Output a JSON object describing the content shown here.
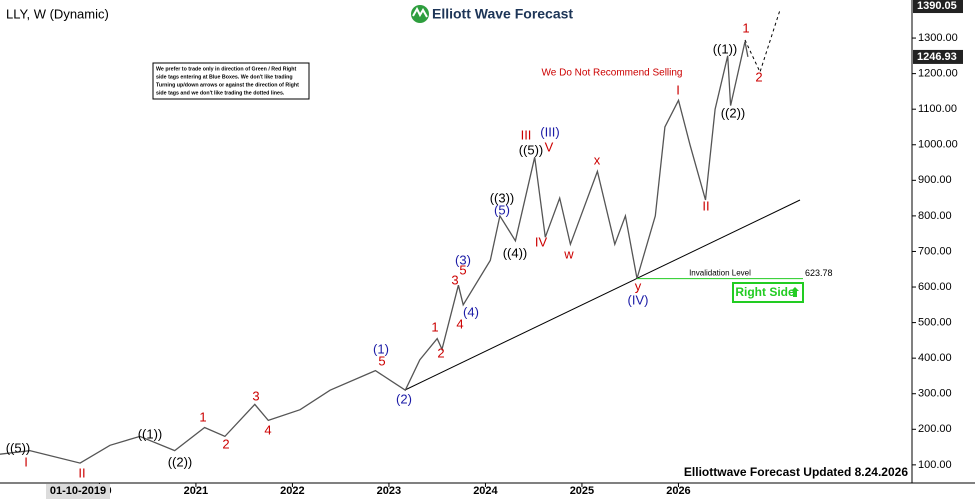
{
  "chart_data": {
    "type": "line",
    "title": "LLY, W (Dynamic)",
    "logo": "Elliott Wave Forecast",
    "note": [
      "We prefer to trade only in direction of Green / Red Right",
      "side tags entering at Blue Boxes. We don't like trading",
      "Turning up/down arrows or against the direction of Right",
      "side tags and we don't like trading the dotted lines."
    ],
    "warning": "We Do Not Recommend Selling",
    "invalidation_label": "Invalidation Level",
    "invalidation_value": 623.78,
    "side_tag": "Right Side",
    "footer": "Elliottwave Forecast Updated 8.24.2026",
    "cursor_label": "01-10-2019",
    "price_markers": [
      1390.05,
      1246.93
    ],
    "series": [
      {
        "name": "LLY",
        "color": "#555555",
        "x": [
          2018.97,
          2019.28,
          2019.8,
          2020.11,
          2020.42,
          2020.78,
          2021.09,
          2021.3,
          2021.61,
          2021.75,
          2022.08,
          2022.39,
          2022.86,
          2023.17,
          2023.32,
          2023.5,
          2023.55,
          2023.72,
          2023.77,
          2024.05,
          2024.15,
          2024.31,
          2024.51,
          2024.62,
          2024.77,
          2024.88,
          2025.16,
          2025.34,
          2025.45,
          2025.57,
          2025.76,
          2025.86,
          2026.0,
          2026.12,
          2026.28,
          2026.38,
          2026.51,
          2026.54,
          2026.69,
          2026.72
        ],
        "values": [
          130,
          140,
          105,
          155,
          180,
          140,
          205,
          180,
          270,
          225,
          255,
          310,
          365,
          310,
          395,
          455,
          425,
          605,
          550,
          675,
          800,
          730,
          965,
          740,
          850,
          720,
          925,
          720,
          800,
          624,
          800,
          1050,
          1125,
          1000,
          845,
          1100,
          1250,
          1110,
          1290,
          1247
        ]
      }
    ],
    "xlim": [
      2018.97,
      2028.42
    ],
    "xticks": [
      2020,
      2021,
      2022,
      2023,
      2024,
      2025,
      2026
    ],
    "ylim": [
      49,
      1407
    ],
    "yticks": [
      {
        "value": 100,
        "label": "100.00"
      },
      {
        "value": 200,
        "label": "200.00"
      },
      {
        "value": 300,
        "label": "300.00"
      },
      {
        "value": 400,
        "label": "400.00"
      },
      {
        "value": 500,
        "label": "500.00"
      },
      {
        "value": 600,
        "label": "600.00"
      },
      {
        "value": 700,
        "label": "700.00"
      },
      {
        "value": 800,
        "label": "800.00"
      },
      {
        "value": 900,
        "label": "900.00"
      },
      {
        "value": 1000,
        "label": "1000.00"
      },
      {
        "value": 1100,
        "label": "1100.00"
      },
      {
        "value": 1200,
        "label": "1200.00"
      },
      {
        "value": 1300,
        "label": "1300.00"
      }
    ],
    "wave_labels": [
      {
        "text": "((5))",
        "color": "#000000"
      },
      {
        "text": "I",
        "color": "#cc0000"
      },
      {
        "text": "II",
        "color": "#cc0000"
      },
      {
        "text": "((1))",
        "color": "#000000"
      },
      {
        "text": "((2))",
        "color": "#000000"
      },
      {
        "text": "1",
        "color": "#cc0000"
      },
      {
        "text": "2",
        "color": "#cc0000"
      },
      {
        "text": "3",
        "color": "#cc0000"
      },
      {
        "text": "4",
        "color": "#cc0000"
      },
      {
        "text": "(1)",
        "color": "#1a1aa6"
      },
      {
        "text": "5",
        "color": "#cc0000"
      },
      {
        "text": "(2)",
        "color": "#1a1aa6"
      },
      {
        "text": "1",
        "color": "#cc0000"
      },
      {
        "text": "2",
        "color": "#cc0000"
      },
      {
        "text": "3",
        "color": "#cc0000"
      },
      {
        "text": "(3)",
        "color": "#1a1aa6"
      },
      {
        "text": "5",
        "color": "#cc0000"
      },
      {
        "text": "4",
        "color": "#cc0000"
      },
      {
        "text": "(4)",
        "color": "#1a1aa6"
      },
      {
        "text": "((3))",
        "color": "#000000"
      },
      {
        "text": "(5)",
        "color": "#1a1aa6"
      },
      {
        "text": "((4))",
        "color": "#000000"
      },
      {
        "text": "((5))",
        "color": "#000000"
      },
      {
        "text": "III",
        "color": "#cc0000"
      },
      {
        "text": "(III)",
        "color": "#1a1aa6"
      },
      {
        "text": "V",
        "color": "#cc0000"
      },
      {
        "text": "IV",
        "color": "#cc0000"
      },
      {
        "text": "w",
        "color": "#cc0000"
      },
      {
        "text": "x",
        "color": "#cc0000"
      },
      {
        "text": "y",
        "color": "#cc0000"
      },
      {
        "text": "(IV)",
        "color": "#1a1aa6"
      },
      {
        "text": "I",
        "color": "#cc0000"
      },
      {
        "text": "II",
        "color": "#cc0000"
      },
      {
        "text": "((1))",
        "color": "#000000"
      },
      {
        "text": "((2))",
        "color": "#000000"
      },
      {
        "text": "1",
        "color": "#cc0000"
      },
      {
        "text": "2",
        "color": "#cc0000"
      }
    ]
  }
}
